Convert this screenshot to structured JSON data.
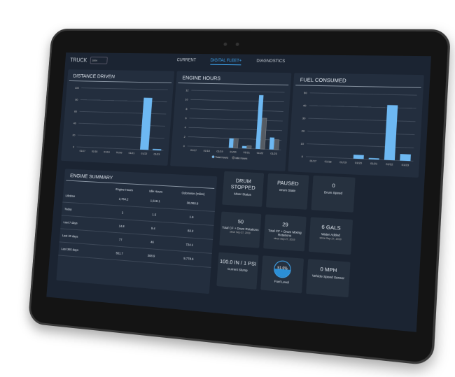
{
  "header": {
    "truck_label": "TRUCK",
    "truck_select": "1004",
    "tabs": [
      {
        "label": "CURRENT"
      },
      {
        "label": "DIGITAL FLEET+",
        "active": true
      },
      {
        "label": "DIAGNOSTICS"
      }
    ]
  },
  "colors": {
    "accent": "#3fa9f5",
    "bar_primary": "#6db8f2",
    "bar_secondary": "#555b63",
    "card": "#232e3e",
    "background": "#1b2432"
  },
  "chart_data": [
    {
      "type": "bar",
      "title": "DISTANCE DRIVEN",
      "categories": [
        "01/17",
        "01/18",
        "01/19",
        "01/20",
        "01/21",
        "01/22",
        "01/23"
      ],
      "values": [
        0,
        0,
        0,
        0,
        0,
        86,
        2
      ],
      "ylim": [
        0,
        100
      ],
      "yticks": [
        0,
        20,
        40,
        60,
        80,
        100
      ],
      "grid": true
    },
    {
      "type": "bar",
      "title": "ENGINE HOURS",
      "categories": [
        "01/17",
        "01/18",
        "01/19",
        "01/20",
        "01/21",
        "01/22",
        "01/23"
      ],
      "series": [
        {
          "name": "Total hours",
          "values": [
            0,
            0,
            0,
            2,
            0.5,
            11.3,
            2.5
          ]
        },
        {
          "name": "Idle hours",
          "values": [
            0,
            0,
            0,
            2,
            0.6,
            6.5,
            2.1
          ]
        }
      ],
      "ylim": [
        0,
        12
      ],
      "yticks": [
        0,
        2,
        4,
        6,
        8,
        10,
        12
      ],
      "grid": true,
      "legend": "bottom"
    },
    {
      "type": "bar",
      "title": "FUEL CONSUMED",
      "categories": [
        "01/17",
        "01/18",
        "01/19",
        "01/20",
        "01/21",
        "01/22",
        "01/23"
      ],
      "values": [
        0,
        0,
        0,
        3,
        1,
        42,
        5
      ],
      "ylim": [
        0,
        50
      ],
      "yticks": [
        0,
        10,
        20,
        30,
        40,
        50
      ],
      "grid": true
    }
  ],
  "summary": {
    "title": "ENGINE SUMMARY",
    "columns": [
      "",
      "Engine Hours",
      "Idle Hours",
      "Odometer (miles)"
    ],
    "rows": [
      [
        "Lifetime",
        "2,764.2",
        "1,518.1",
        "38,060.8"
      ],
      [
        "Today",
        "2",
        "1.5",
        "1.6"
      ],
      [
        "Last 7 days",
        "14.8",
        "9.4",
        "83.3"
      ],
      [
        "Last 30 days",
        "77",
        "46",
        "724.1"
      ],
      [
        "Last 365 days",
        "551.7",
        "308.9",
        "9,778.5"
      ]
    ]
  },
  "tiles": [
    {
      "value": "DRUM STOPPED",
      "label": "Mixer Status"
    },
    {
      "value": "PAUSED",
      "label": "Drum State"
    },
    {
      "value": "0",
      "label": "Drum Speed"
    },
    {
      "value": "50",
      "label": "Total CF + Drum Rotations",
      "sub": "since Sep 27, 2019"
    },
    {
      "value": "29",
      "label": "Total CF + Drum Mixing Rotations",
      "sub": "since Sep 27, 2019"
    },
    {
      "value": "6 GALS",
      "label": "Water Added",
      "sub": "since Sep 27, 2019"
    },
    {
      "value": "100.0 IN / 1 PSI",
      "label": "Current Slump"
    },
    {
      "value": "51.6%",
      "label": "Fuel Level",
      "gauge": 51.6
    },
    {
      "value": "0 MPH",
      "label": "Vehicle Speed Sensor"
    }
  ]
}
